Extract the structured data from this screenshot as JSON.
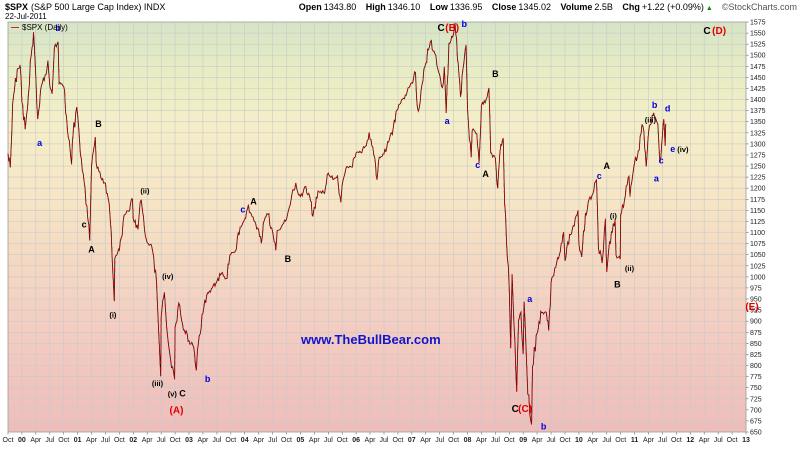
{
  "header": {
    "symbol": "$SPX",
    "symbol_desc": "(S&P 500 Large Cap Index) INDX",
    "date": "22-Jul-2011",
    "legend": "$SPX (Daily)",
    "copyright": "©StockCharts.com",
    "quote": {
      "open_label": "Open",
      "open": "1343.80",
      "high_label": "High",
      "high": "1346.10",
      "low_label": "Low",
      "low": "1336.95",
      "close_label": "Close",
      "close": "1345.02",
      "volume_label": "Volume",
      "volume": "2.5B",
      "chg_label": "Chg",
      "chg": "+1.22 (+0.09%)",
      "chg_dir": "▲"
    }
  },
  "watermark": "www.TheBullBear.com",
  "chart_data": {
    "type": "line",
    "title": "$SPX S&P 500 Large Cap Index (Daily)",
    "xlabel": "Date (Oct 1999 - Jan 2013, x expressed in months since Oct 1999)",
    "ylabel": "Index value",
    "ylim": [
      650,
      1575
    ],
    "y_tick_step": 25,
    "grid": true,
    "legend_position": "top-left",
    "x_ticks": [
      {
        "m": 0,
        "l": "Oct",
        "b": false
      },
      {
        "m": 3,
        "l": "00",
        "b": true
      },
      {
        "m": 6,
        "l": "Apr",
        "b": false
      },
      {
        "m": 9,
        "l": "Jul",
        "b": false
      },
      {
        "m": 12,
        "l": "Oct",
        "b": false
      },
      {
        "m": 15,
        "l": "01",
        "b": true
      },
      {
        "m": 18,
        "l": "Apr",
        "b": false
      },
      {
        "m": 21,
        "l": "Jul",
        "b": false
      },
      {
        "m": 24,
        "l": "Oct",
        "b": false
      },
      {
        "m": 27,
        "l": "02",
        "b": true
      },
      {
        "m": 30,
        "l": "Apr",
        "b": false
      },
      {
        "m": 33,
        "l": "Jul",
        "b": false
      },
      {
        "m": 36,
        "l": "Oct",
        "b": false
      },
      {
        "m": 39,
        "l": "03",
        "b": true
      },
      {
        "m": 42,
        "l": "Apr",
        "b": false
      },
      {
        "m": 45,
        "l": "Jul",
        "b": false
      },
      {
        "m": 48,
        "l": "Oct",
        "b": false
      },
      {
        "m": 51,
        "l": "04",
        "b": true
      },
      {
        "m": 54,
        "l": "Apr",
        "b": false
      },
      {
        "m": 57,
        "l": "Jul",
        "b": false
      },
      {
        "m": 60,
        "l": "Oct",
        "b": false
      },
      {
        "m": 63,
        "l": "05",
        "b": true
      },
      {
        "m": 66,
        "l": "Apr",
        "b": false
      },
      {
        "m": 69,
        "l": "Jul",
        "b": false
      },
      {
        "m": 72,
        "l": "Oct",
        "b": false
      },
      {
        "m": 75,
        "l": "06",
        "b": true
      },
      {
        "m": 78,
        "l": "Apr",
        "b": false
      },
      {
        "m": 81,
        "l": "Jul",
        "b": false
      },
      {
        "m": 84,
        "l": "Oct",
        "b": false
      },
      {
        "m": 87,
        "l": "07",
        "b": true
      },
      {
        "m": 90,
        "l": "Apr",
        "b": false
      },
      {
        "m": 93,
        "l": "Jul",
        "b": false
      },
      {
        "m": 96,
        "l": "Oct",
        "b": false
      },
      {
        "m": 99,
        "l": "08",
        "b": true
      },
      {
        "m": 102,
        "l": "Apr",
        "b": false
      },
      {
        "m": 105,
        "l": "Jul",
        "b": false
      },
      {
        "m": 108,
        "l": "Oct",
        "b": false
      },
      {
        "m": 111,
        "l": "09",
        "b": true
      },
      {
        "m": 114,
        "l": "Apr",
        "b": false
      },
      {
        "m": 117,
        "l": "Jul",
        "b": false
      },
      {
        "m": 120,
        "l": "Oct",
        "b": false
      },
      {
        "m": 123,
        "l": "10",
        "b": true
      },
      {
        "m": 126,
        "l": "Apr",
        "b": false
      },
      {
        "m": 129,
        "l": "Jul",
        "b": false
      },
      {
        "m": 132,
        "l": "Oct",
        "b": false
      },
      {
        "m": 135,
        "l": "11",
        "b": true
      },
      {
        "m": 138,
        "l": "Apr",
        "b": false
      },
      {
        "m": 141,
        "l": "Jul",
        "b": false
      },
      {
        "m": 144,
        "l": "Oct",
        "b": false
      },
      {
        "m": 147,
        "l": "12",
        "b": true
      },
      {
        "m": 150,
        "l": "Apr",
        "b": false
      },
      {
        "m": 153,
        "l": "Jul",
        "b": false
      },
      {
        "m": 156,
        "l": "Oct",
        "b": false
      },
      {
        "m": 159,
        "l": "13",
        "b": true
      }
    ],
    "series_monthly": [
      [
        0,
        1278
      ],
      [
        0.5,
        1247
      ],
      [
        1,
        1389
      ],
      [
        2,
        1469
      ],
      [
        2.6,
        1478
      ],
      [
        3,
        1394
      ],
      [
        3.7,
        1333
      ],
      [
        4,
        1366
      ],
      [
        5,
        1499
      ],
      [
        5.5,
        1552
      ],
      [
        6,
        1452
      ],
      [
        6.4,
        1356
      ],
      [
        7,
        1421
      ],
      [
        8,
        1455
      ],
      [
        8.6,
        1488
      ],
      [
        9,
        1431
      ],
      [
        9.5,
        1413
      ],
      [
        10,
        1518
      ],
      [
        10.8,
        1530
      ],
      [
        11,
        1436
      ],
      [
        12,
        1429
      ],
      [
        12.6,
        1362
      ],
      [
        13,
        1315
      ],
      [
        13.7,
        1254
      ],
      [
        14,
        1320
      ],
      [
        14.8,
        1383
      ],
      [
        15,
        1366
      ],
      [
        16,
        1240
      ],
      [
        17,
        1160
      ],
      [
        17.6,
        1082
      ],
      [
        18,
        1249
      ],
      [
        18.8,
        1315
      ],
      [
        19,
        1256
      ],
      [
        20,
        1224
      ],
      [
        21,
        1211
      ],
      [
        22,
        1134
      ],
      [
        22.9,
        945
      ],
      [
        23,
        1041
      ],
      [
        24,
        1060
      ],
      [
        25,
        1139
      ],
      [
        26,
        1148
      ],
      [
        26.8,
        1176
      ],
      [
        27,
        1130
      ],
      [
        28,
        1107
      ],
      [
        28.7,
        1174
      ],
      [
        29,
        1147
      ],
      [
        30,
        1077
      ],
      [
        31,
        1067
      ],
      [
        32,
        990
      ],
      [
        32.9,
        776
      ],
      [
        33,
        912
      ],
      [
        33.7,
        965
      ],
      [
        34,
        916
      ],
      [
        35,
        815
      ],
      [
        35.9,
        769
      ],
      [
        36,
        886
      ],
      [
        36.8,
        941
      ],
      [
        37,
        936
      ],
      [
        38,
        880
      ],
      [
        39,
        856
      ],
      [
        40,
        841
      ],
      [
        40.6,
        789
      ],
      [
        41,
        848
      ],
      [
        42,
        917
      ],
      [
        43,
        964
      ],
      [
        44,
        975
      ],
      [
        45,
        990
      ],
      [
        46,
        1008
      ],
      [
        47,
        996
      ],
      [
        48,
        1051
      ],
      [
        49,
        1058
      ],
      [
        50,
        1112
      ],
      [
        51,
        1131
      ],
      [
        51.8,
        1163
      ],
      [
        52,
        1145
      ],
      [
        53,
        1126
      ],
      [
        54,
        1107
      ],
      [
        54.6,
        1076
      ],
      [
        55,
        1121
      ],
      [
        56,
        1141
      ],
      [
        57,
        1102
      ],
      [
        57.7,
        1060
      ],
      [
        58,
        1104
      ],
      [
        59,
        1115
      ],
      [
        60,
        1130
      ],
      [
        61,
        1174
      ],
      [
        62,
        1212
      ],
      [
        63,
        1181
      ],
      [
        64,
        1204
      ],
      [
        65,
        1181
      ],
      [
        65.7,
        1137
      ],
      [
        66,
        1157
      ],
      [
        67,
        1192
      ],
      [
        68,
        1191
      ],
      [
        69,
        1234
      ],
      [
        70,
        1220
      ],
      [
        71,
        1229
      ],
      [
        71.7,
        1168
      ],
      [
        72,
        1207
      ],
      [
        73,
        1249
      ],
      [
        74,
        1248
      ],
      [
        75,
        1280
      ],
      [
        76,
        1281
      ],
      [
        77,
        1295
      ],
      [
        77.8,
        1326
      ],
      [
        78,
        1311
      ],
      [
        79,
        1270
      ],
      [
        79.5,
        1219
      ],
      [
        80,
        1270
      ],
      [
        81,
        1277
      ],
      [
        82,
        1304
      ],
      [
        83,
        1336
      ],
      [
        84,
        1378
      ],
      [
        85,
        1401
      ],
      [
        86,
        1418
      ],
      [
        87,
        1438
      ],
      [
        87.8,
        1461
      ],
      [
        88,
        1407
      ],
      [
        88.4,
        1374
      ],
      [
        89,
        1421
      ],
      [
        90,
        1482
      ],
      [
        91,
        1531
      ],
      [
        92,
        1503
      ],
      [
        93,
        1455
      ],
      [
        93.6,
        1427
      ],
      [
        94,
        1474
      ],
      [
        94.4,
        1370
      ],
      [
        95,
        1527
      ],
      [
        96,
        1549
      ],
      [
        96.3,
        1576
      ],
      [
        97,
        1481
      ],
      [
        97.5,
        1406
      ],
      [
        98,
        1468
      ],
      [
        98.7,
        1523
      ],
      [
        99,
        1379
      ],
      [
        99.8,
        1270
      ],
      [
        100,
        1331
      ],
      [
        101,
        1323
      ],
      [
        101.5,
        1257
      ],
      [
        102,
        1386
      ],
      [
        103,
        1400
      ],
      [
        103.6,
        1426
      ],
      [
        104,
        1280
      ],
      [
        105,
        1267
      ],
      [
        105.5,
        1200
      ],
      [
        106,
        1283
      ],
      [
        106.7,
        1313
      ],
      [
        107,
        1166
      ],
      [
        108,
        969
      ],
      [
        108.3,
        839
      ],
      [
        108.6,
        1006
      ],
      [
        109,
        896
      ],
      [
        109.6,
        741
      ],
      [
        110,
        903
      ],
      [
        110.5,
        920
      ],
      [
        111,
        826
      ],
      [
        111.2,
        944
      ],
      [
        112,
        735
      ],
      [
        112.8,
        667
      ],
      [
        113,
        798
      ],
      [
        114,
        873
      ],
      [
        115,
        919
      ],
      [
        116,
        919
      ],
      [
        116.5,
        879
      ],
      [
        117,
        987
      ],
      [
        118,
        1021
      ],
      [
        119,
        1057
      ],
      [
        119.7,
        1101
      ],
      [
        120,
        1036
      ],
      [
        121,
        1096
      ],
      [
        122,
        1115
      ],
      [
        122.8,
        1150
      ],
      [
        123,
        1074
      ],
      [
        123.6,
        1045
      ],
      [
        124,
        1104
      ],
      [
        125,
        1169
      ],
      [
        126,
        1187
      ],
      [
        126.8,
        1220
      ],
      [
        127.2,
        1066
      ],
      [
        128,
        1031
      ],
      [
        128.7,
        1131
      ],
      [
        129,
        1011
      ],
      [
        130,
        1102
      ],
      [
        130.8,
        1129
      ],
      [
        131,
        1049
      ],
      [
        131.9,
        1040
      ],
      [
        132,
        1141
      ],
      [
        133,
        1183
      ],
      [
        133.8,
        1227
      ],
      [
        134,
        1181
      ],
      [
        135,
        1258
      ],
      [
        136,
        1286
      ],
      [
        136.6,
        1344
      ],
      [
        137,
        1327
      ],
      [
        137.5,
        1249
      ],
      [
        138,
        1326
      ],
      [
        139,
        1364
      ],
      [
        139.1,
        1370
      ],
      [
        140,
        1345
      ],
      [
        140.5,
        1258
      ],
      [
        141,
        1321
      ],
      [
        141.3,
        1356
      ],
      [
        141.6,
        1296
      ],
      [
        141.7,
        1345
      ]
    ],
    "annotations": [
      {
        "t": "a",
        "c": "blue",
        "m": 6.8,
        "p": 1302,
        "s": 2
      },
      {
        "t": "b",
        "c": "blue",
        "m": 10.8,
        "p": 1562,
        "s": 2
      },
      {
        "t": "c",
        "c": "black",
        "m": 16.4,
        "p": 1118,
        "s": 2
      },
      {
        "t": "A",
        "c": "black",
        "m": 18.0,
        "p": 1062,
        "s": 2
      },
      {
        "t": "B",
        "c": "black",
        "m": 19.5,
        "p": 1345,
        "s": 2
      },
      {
        "t": "(i)",
        "c": "black",
        "m": 22.6,
        "p": 915,
        "s": 1
      },
      {
        "t": "(ii)",
        "c": "black",
        "m": 29.5,
        "p": 1195,
        "s": 1
      },
      {
        "t": "(iii)",
        "c": "black",
        "m": 32.2,
        "p": 760,
        "s": 1
      },
      {
        "t": "(iv)",
        "c": "black",
        "m": 34.4,
        "p": 1002,
        "s": 1
      },
      {
        "t": "(v)",
        "c": "black",
        "m": 35.4,
        "p": 737,
        "s": 1
      },
      {
        "t": "C",
        "c": "black",
        "m": 37.6,
        "p": 737,
        "s": 2
      },
      {
        "t": "(A)",
        "c": "red",
        "m": 36.3,
        "p": 698,
        "s": 3
      },
      {
        "t": "b",
        "c": "blue",
        "m": 43.0,
        "p": 770,
        "s": 2
      },
      {
        "t": "c",
        "c": "blue",
        "m": 50.6,
        "p": 1152,
        "s": 2
      },
      {
        "t": "A",
        "c": "black",
        "m": 52.9,
        "p": 1170,
        "s": 2
      },
      {
        "t": "B",
        "c": "black",
        "m": 60.3,
        "p": 1040,
        "s": 2
      },
      {
        "t": "C",
        "c": "black",
        "m": 93.3,
        "p": 1562,
        "s": 3
      },
      {
        "t": "(B)",
        "c": "red",
        "m": 95.7,
        "p": 1562,
        "s": 3
      },
      {
        "t": "b",
        "c": "blue",
        "m": 98.3,
        "p": 1570,
        "s": 2
      },
      {
        "t": "a",
        "c": "blue",
        "m": 94.6,
        "p": 1352,
        "s": 2
      },
      {
        "t": "c",
        "c": "blue",
        "m": 101.2,
        "p": 1252,
        "s": 2
      },
      {
        "t": "A",
        "c": "black",
        "m": 102.9,
        "p": 1232,
        "s": 2
      },
      {
        "t": "B",
        "c": "black",
        "m": 105.0,
        "p": 1458,
        "s": 2
      },
      {
        "t": "C",
        "c": "black",
        "m": 109.3,
        "p": 702,
        "s": 3
      },
      {
        "t": "(C)",
        "c": "red",
        "m": 111.4,
        "p": 702,
        "s": 3
      },
      {
        "t": "a",
        "c": "blue",
        "m": 112.4,
        "p": 950,
        "s": 2
      },
      {
        "t": "b",
        "c": "blue",
        "m": 115.4,
        "p": 662,
        "s": 2
      },
      {
        "t": "c",
        "c": "blue",
        "m": 127.4,
        "p": 1228,
        "s": 2
      },
      {
        "t": "A",
        "c": "black",
        "m": 129.0,
        "p": 1250,
        "s": 2
      },
      {
        "t": "(i)",
        "c": "black",
        "m": 130.4,
        "p": 1138,
        "s": 1
      },
      {
        "t": "B",
        "c": "black",
        "m": 131.3,
        "p": 983,
        "s": 2
      },
      {
        "t": "(ii)",
        "c": "black",
        "m": 133.9,
        "p": 1020,
        "s": 1
      },
      {
        "t": "(iii)",
        "c": "black",
        "m": 138.4,
        "p": 1355,
        "s": 1
      },
      {
        "t": "a",
        "c": "blue",
        "m": 139.7,
        "p": 1222,
        "s": 2
      },
      {
        "t": "b",
        "c": "blue",
        "m": 139.3,
        "p": 1388,
        "s": 2
      },
      {
        "t": "c",
        "c": "blue",
        "m": 140.7,
        "p": 1262,
        "s": 2
      },
      {
        "t": "d",
        "c": "blue",
        "m": 142.1,
        "p": 1380,
        "s": 2
      },
      {
        "t": "e",
        "c": "blue",
        "m": 143.2,
        "p": 1288,
        "s": 2
      },
      {
        "t": "(iv)",
        "c": "black",
        "m": 145.4,
        "p": 1288,
        "s": 1
      },
      {
        "t": "C",
        "c": "black",
        "m": 150.6,
        "p": 1555,
        "s": 3
      },
      {
        "t": "(D)",
        "c": "red",
        "m": 153.2,
        "p": 1555,
        "s": 3
      },
      {
        "t": "(E)",
        "c": "red",
        "m": 160.3,
        "p": 932,
        "s": 3
      }
    ],
    "colors": {
      "candle_red": "#cc0000",
      "candle_black": "#111111",
      "wave_blue": "#0000dd",
      "wave_red": "#e00000",
      "wave_black": "#000000",
      "watermark_blue": "#1414cc"
    }
  }
}
